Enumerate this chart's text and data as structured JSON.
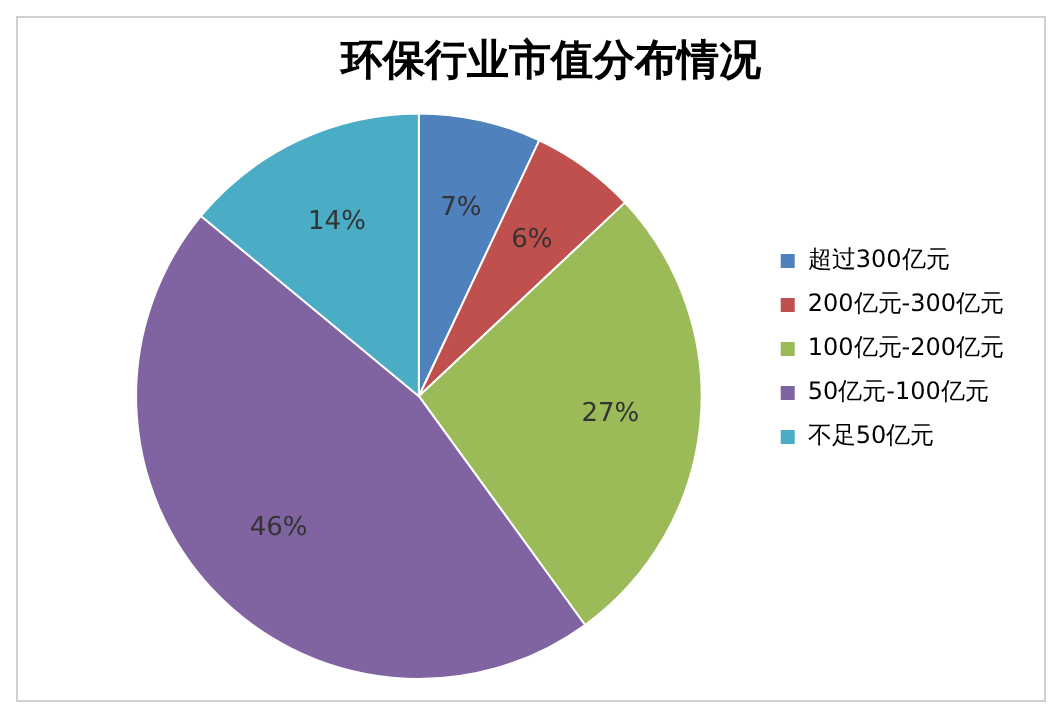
{
  "chart_data": {
    "type": "pie",
    "title": "环保行业市值分布情况",
    "categories": [
      "超过300亿元",
      "200亿元-300亿元",
      "100亿元-200亿元",
      "50亿元-100亿元",
      "不足50亿元"
    ],
    "values": [
      7,
      6,
      27,
      46,
      14
    ],
    "value_labels": [
      "7%",
      "6%",
      "27%",
      "46%",
      "14%"
    ],
    "colors": [
      "#4f81bd",
      "#c0504d",
      "#9bbb59",
      "#8064a2",
      "#4bacc6"
    ],
    "legend": "right"
  }
}
